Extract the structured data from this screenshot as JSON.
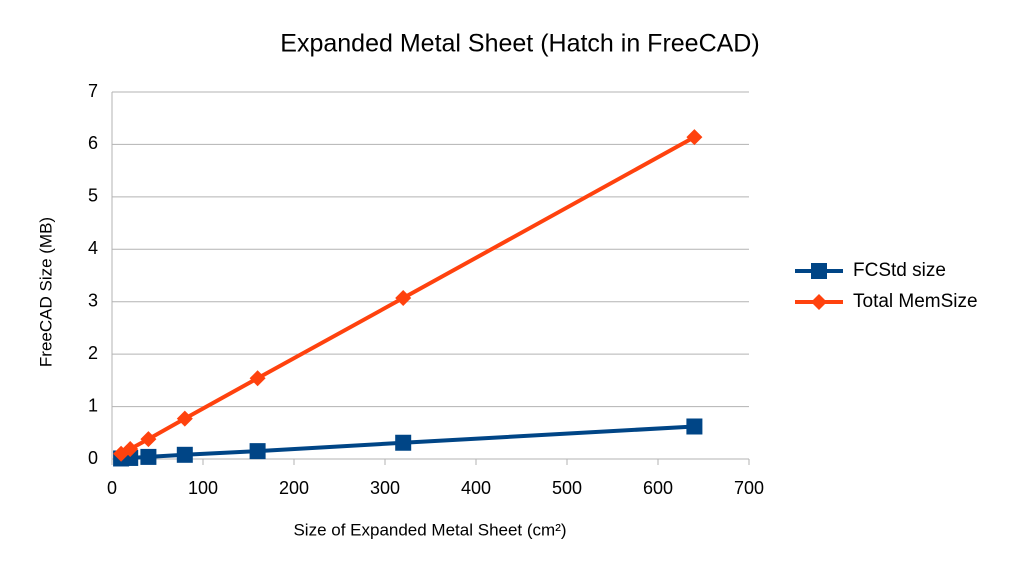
{
  "chart_data": {
    "type": "line",
    "title": "Expanded Metal Sheet (Hatch in FreeCAD)",
    "x_label": "Size of Expanded Metal Sheet (cm²)",
    "y_label": "FreeCAD Size (MB)",
    "x": [
      10,
      20,
      40,
      80,
      160,
      320,
      640
    ],
    "series": [
      {
        "name": "FCStd size",
        "color": "#004586",
        "marker": "square",
        "values": [
          0.01,
          0.02,
          0.04,
          0.08,
          0.15,
          0.31,
          0.62
        ]
      },
      {
        "name": "Total MemSize",
        "color": "#ff420e",
        "marker": "diamond",
        "values": [
          0.1,
          0.19,
          0.38,
          0.77,
          1.54,
          3.07,
          6.14
        ]
      }
    ],
    "xlim": [
      0,
      700
    ],
    "xticks": [
      0,
      100,
      200,
      300,
      400,
      500,
      600,
      700
    ],
    "ylim": [
      0,
      7
    ],
    "yticks": [
      0,
      1,
      2,
      3,
      4,
      5,
      6,
      7
    ],
    "grid": true,
    "legend": "right"
  }
}
